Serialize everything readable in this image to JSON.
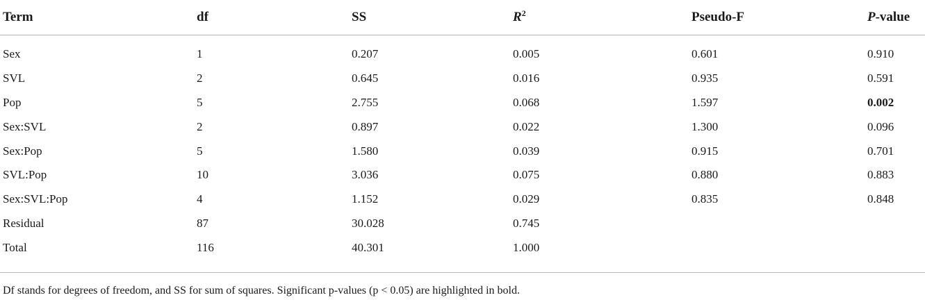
{
  "table": {
    "headers": {
      "term": "Term",
      "df": "df",
      "ss": "SS",
      "r2_base": "R",
      "r2_sup": "2",
      "pseudo_f": "Pseudo-F",
      "pvalue_italic": "P",
      "pvalue_rest": "-value"
    },
    "rows": [
      {
        "term": "Sex",
        "df": "1",
        "ss": "0.207",
        "r2": "0.005",
        "pseudo_f": "0.601",
        "p_value": "0.910",
        "significant": false
      },
      {
        "term": "SVL",
        "df": "2",
        "ss": "0.645",
        "r2": "0.016",
        "pseudo_f": "0.935",
        "p_value": "0.591",
        "significant": false
      },
      {
        "term": "Pop",
        "df": "5",
        "ss": "2.755",
        "r2": "0.068",
        "pseudo_f": "1.597",
        "p_value": "0.002",
        "significant": true
      },
      {
        "term": "Sex:SVL",
        "df": "2",
        "ss": "0.897",
        "r2": "0.022",
        "pseudo_f": "1.300",
        "p_value": "0.096",
        "significant": false
      },
      {
        "term": "Sex:Pop",
        "df": "5",
        "ss": "1.580",
        "r2": "0.039",
        "pseudo_f": "0.915",
        "p_value": "0.701",
        "significant": false
      },
      {
        "term": "SVL:Pop",
        "df": "10",
        "ss": "3.036",
        "r2": "0.075",
        "pseudo_f": "0.880",
        "p_value": "0.883",
        "significant": false
      },
      {
        "term": "Sex:SVL:Pop",
        "df": "4",
        "ss": "1.152",
        "r2": "0.029",
        "pseudo_f": "0.835",
        "p_value": "0.848",
        "significant": false
      },
      {
        "term": "Residual",
        "df": "87",
        "ss": "30.028",
        "r2": "0.745",
        "pseudo_f": "",
        "p_value": "",
        "significant": false
      },
      {
        "term": "Total",
        "df": "116",
        "ss": "40.301",
        "r2": "1.000",
        "pseudo_f": "",
        "p_value": "",
        "significant": false
      }
    ]
  },
  "footnote": "Df stands for degrees of freedom, and SS for sum of squares. Significant p-values (p < 0.05) are highlighted in bold."
}
